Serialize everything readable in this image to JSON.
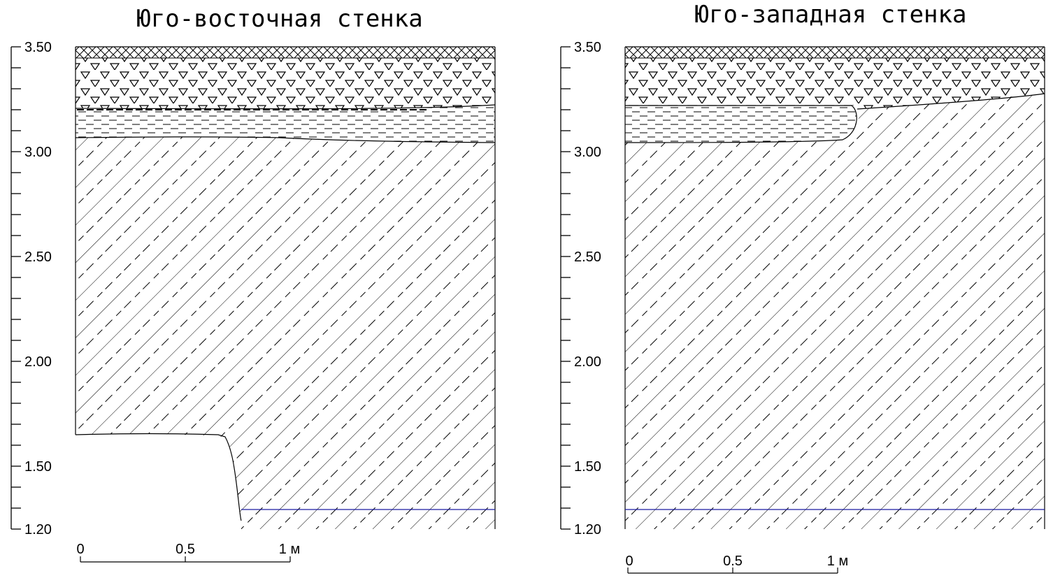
{
  "units": "м",
  "axis_labels": [
    "3.50",
    "3.00",
    "2.50",
    "2.00",
    "1.50",
    "1.20"
  ],
  "water_line_color": "#1a1aa0",
  "panels": [
    {
      "id": "se",
      "title": "Юго-восточная стенка",
      "scale_labels": [
        "0",
        "0.5",
        "1 м"
      ]
    },
    {
      "id": "sw",
      "title": "Юго-западная стенка",
      "scale_labels": [
        "0",
        "0.5",
        "1 м"
      ]
    }
  ]
}
